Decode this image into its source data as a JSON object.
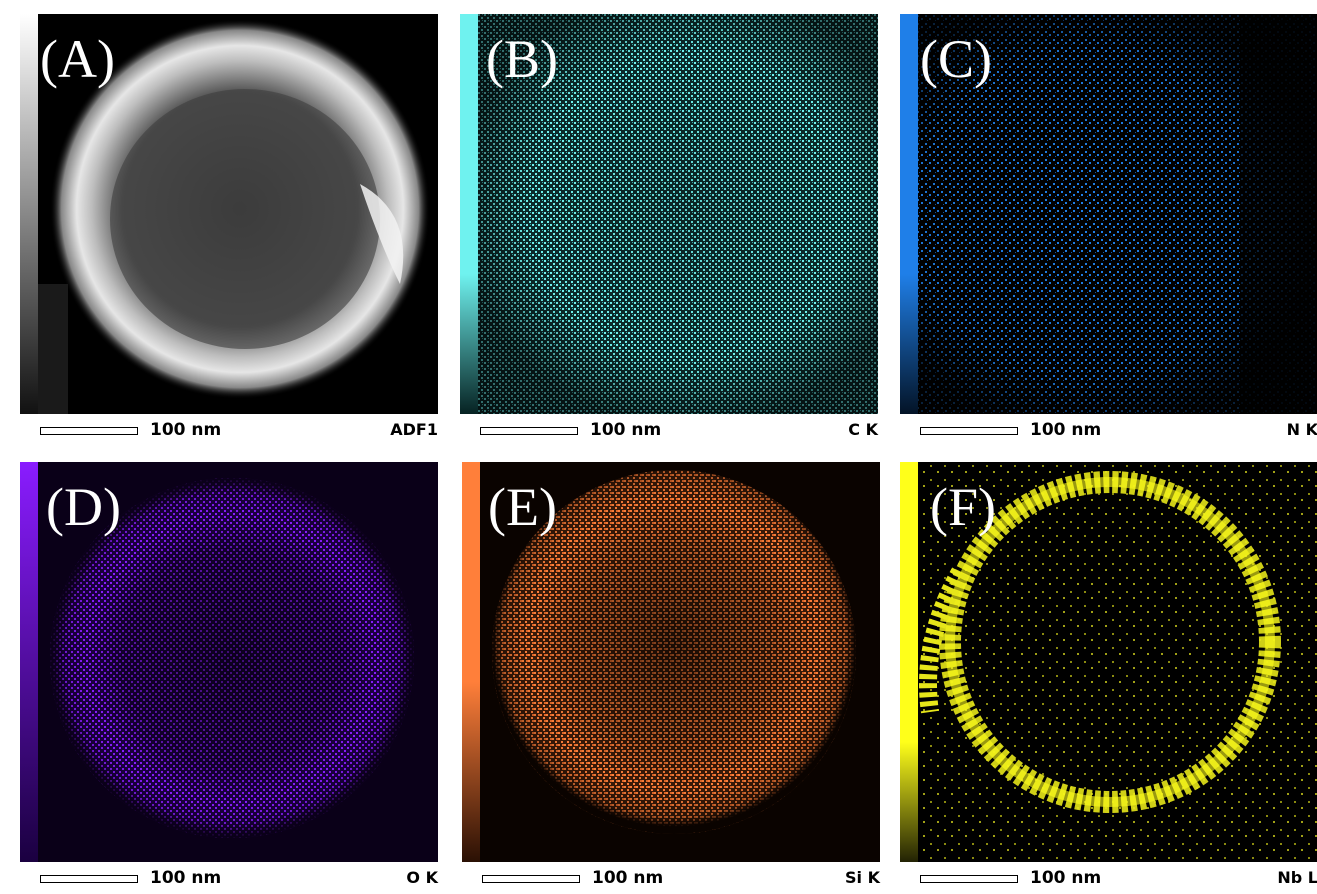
{
  "panels": [
    {
      "id": "a",
      "letter": "(A)",
      "scale_label": "100 nm",
      "element_label": "ADF1",
      "color": "#ffffff"
    },
    {
      "id": "b",
      "letter": "(B)",
      "scale_label": "100 nm",
      "element_label": "C K",
      "color": "#6ff2ef"
    },
    {
      "id": "c",
      "letter": "(C)",
      "scale_label": "100 nm",
      "element_label": "N K",
      "color": "#1f7fe8"
    },
    {
      "id": "d",
      "letter": "(D)",
      "scale_label": "100 nm",
      "element_label": "O K",
      "color": "#8a1cff"
    },
    {
      "id": "e",
      "letter": "(E)",
      "scale_label": "100 nm",
      "element_label": "Si K",
      "color": "#ff7f3a"
    },
    {
      "id": "f",
      "letter": "(F)",
      "scale_label": "100 nm",
      "element_label": "Nb L",
      "color": "#ffff1a"
    }
  ]
}
